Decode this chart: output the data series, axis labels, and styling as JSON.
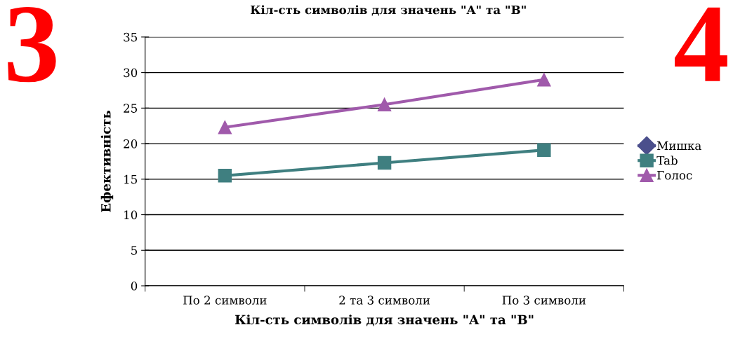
{
  "chart_data": {
    "type": "line",
    "title": "Кіл-сть символів для значень \"A\" та \"B\"",
    "xlabel": "Кіл-сть символів для значень \"A\" та \"B\"",
    "ylabel": "Ефективність",
    "categories": [
      "По 2 символи",
      "2 та 3 символи",
      "По 3 символи"
    ],
    "series": [
      {
        "name": "Мишка",
        "color": "#4b4f8c",
        "marker": "diamond",
        "values": [
          null,
          null,
          null
        ]
      },
      {
        "name": "Tab",
        "color": "#3f7f80",
        "marker": "square",
        "values": [
          15.5,
          17.3,
          19.1
        ]
      },
      {
        "name": "Голос",
        "color": "#a05aab",
        "marker": "triangle",
        "values": [
          22.3,
          25.5,
          29.0
        ]
      }
    ],
    "ylim": [
      0,
      35
    ],
    "yticks": [
      0,
      5,
      10,
      15,
      20,
      25,
      30,
      35
    ],
    "grid": "y",
    "legend": "right",
    "line_style": "solid",
    "annotations": [
      "3",
      "4"
    ]
  }
}
